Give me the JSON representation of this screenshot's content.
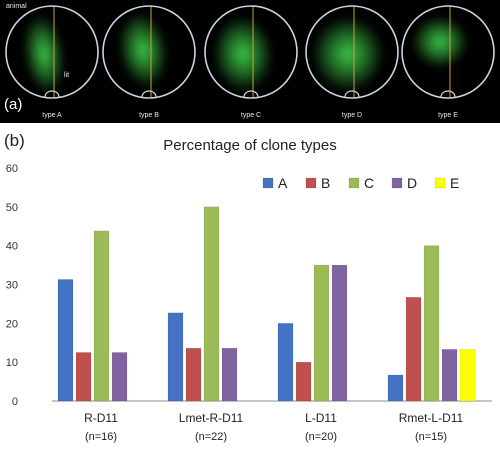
{
  "panel_a": {
    "label": "(a)",
    "animal_label": "animal",
    "lit_label": "lit",
    "images": [
      {
        "caption": "type A",
        "shape": "a"
      },
      {
        "caption": "type B",
        "shape": "b"
      },
      {
        "caption": "type C",
        "shape": "c"
      },
      {
        "caption": "type D",
        "shape": "d"
      },
      {
        "caption": "type E",
        "shape": "e"
      }
    ],
    "colors": {
      "background": "#000000",
      "circle": "#c8d4e0",
      "midline": "#c9a23a",
      "glow": "#3fd24a"
    }
  },
  "panel_b": {
    "label": "(b)"
  },
  "chart_data": {
    "type": "bar",
    "title": "Percentage of clone types",
    "categories": [
      "R-D11",
      "Lmet-R-D11",
      "L-D11",
      "Rmet-L-D11"
    ],
    "category_n": [
      "(n=16)",
      "(n=22)",
      "(n=20)",
      "(n=15)"
    ],
    "series": [
      {
        "name": "A",
        "color": "#4472c4",
        "values": [
          31.3,
          22.7,
          20,
          6.7
        ]
      },
      {
        "name": "B",
        "color": "#c0504d",
        "values": [
          12.5,
          13.6,
          10,
          26.7
        ]
      },
      {
        "name": "C",
        "color": "#9bbb59",
        "values": [
          43.8,
          50,
          35,
          40
        ]
      },
      {
        "name": "D",
        "color": "#8064a2",
        "values": [
          12.5,
          13.6,
          35,
          13.3
        ]
      },
      {
        "name": "E",
        "color": "#ffff00",
        "values": [
          0,
          0,
          0,
          13.3
        ]
      }
    ],
    "ylim": [
      0,
      60
    ],
    "yticks": [
      0,
      10,
      20,
      30,
      40,
      50,
      60
    ],
    "legend_position": "top-right",
    "grid": false
  }
}
